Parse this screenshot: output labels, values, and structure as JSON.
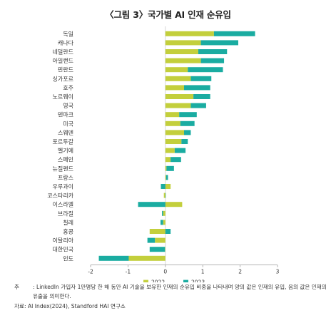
{
  "figure_title": "〈그림 3〉국가별 AI 인재 순유입",
  "note_label": "주",
  "note_text": ": LinkedIn 가입자 1만명당 한 해 동안 AI 기술을 보유한 인재의 순유입 비중을 나타내며 양의 값은 인재의 유입, 음의 값은 인재의 유출을 의미한다.",
  "source_text": "자료: AI Index(2024), Standford HAI 연구소",
  "colors": {
    "s2022": "#c3cf3c",
    "s2023": "#1aaca1",
    "axis": "#9a9a9a"
  },
  "chart_data": {
    "type": "bar",
    "orientation": "horizontal",
    "stacked": true,
    "xlim": [
      -2,
      3
    ],
    "xticks": [
      -2,
      -1,
      0,
      1,
      2,
      3
    ],
    "legend_position": "bottom",
    "categories": [
      "독일",
      "캐나다",
      "네덜란드",
      "아일랜드",
      "핀란드",
      "싱가포르",
      "호주",
      "노르웨이",
      "영국",
      "덴마크",
      "미국",
      "스웨덴",
      "포르투갈",
      "벨기에",
      "스페인",
      "뉴질랜드",
      "프랑스",
      "우루과이",
      "코스타리카",
      "이스라엘",
      "브라질",
      "칠레",
      "홍콩",
      "이탈리아",
      "대한민국",
      "인도"
    ],
    "series": [
      {
        "name": "2022",
        "values": [
          1.3,
          0.95,
          0.88,
          0.95,
          0.6,
          0.68,
          0.5,
          0.75,
          0.68,
          0.37,
          0.4,
          0.5,
          0.43,
          0.25,
          0.14,
          0.03,
          0.02,
          0.14,
          -0.04,
          0.45,
          -0.06,
          -0.06,
          -0.42,
          -0.28,
          -0.01,
          -0.98
        ]
      },
      {
        "name": "2023",
        "values": [
          1.1,
          1.0,
          0.77,
          0.62,
          0.94,
          0.55,
          0.7,
          0.45,
          0.41,
          0.47,
          0.38,
          0.18,
          0.17,
          0.29,
          0.28,
          0.2,
          0.05,
          -0.12,
          0.01,
          -0.73,
          -0.03,
          -0.07,
          0.14,
          -0.2,
          -0.41,
          -0.8
        ]
      }
    ]
  }
}
